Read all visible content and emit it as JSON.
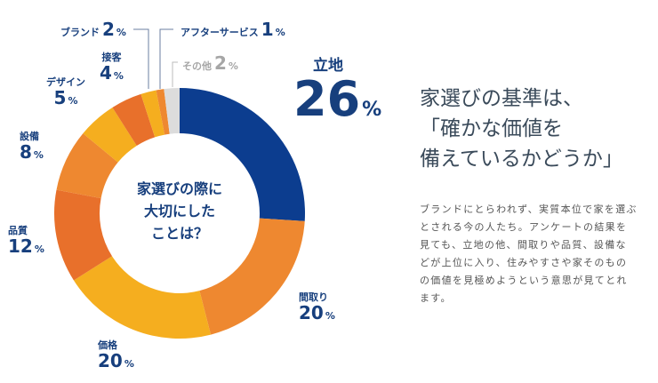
{
  "chart_data": {
    "type": "pie",
    "donut": true,
    "center_label": [
      "家選びの際に",
      "大切にした",
      "ことは？"
    ],
    "unit": "%",
    "slices": [
      {
        "label": "立地",
        "value": 26,
        "color": "#0c3d8f"
      },
      {
        "label": "間取り",
        "value": 20,
        "color": "#ee8830"
      },
      {
        "label": "価格",
        "value": 20,
        "color": "#f5ae1f"
      },
      {
        "label": "品質",
        "value": 12,
        "color": "#e8702b"
      },
      {
        "label": "設備",
        "value": 8,
        "color": "#ee8830"
      },
      {
        "label": "デザイン",
        "value": 5,
        "color": "#f5ae1f"
      },
      {
        "label": "接客",
        "value": 4,
        "color": "#e8702b"
      },
      {
        "label": "ブランド",
        "value": 2,
        "color": "#f5ae1f"
      },
      {
        "label": "アフターサービス",
        "value": 1,
        "color": "#ee8830"
      },
      {
        "label": "その他",
        "value": 2,
        "color": "#dcdcdc"
      }
    ]
  },
  "headline": [
    "家選びの基準は、",
    "「確かな価値を",
    "備えているかどうか」"
  ],
  "body_text": [
    "ブランドにとらわれず、実質本位で家を選ぶ",
    "とされる今の人たち。アンケートの結果を",
    "見ても、立地の他、間取りや品質、設備な",
    "どが上位に入り、住みやすさや家そのもの",
    "の価値を見極めようという意思が見てとれ",
    "ます。"
  ]
}
